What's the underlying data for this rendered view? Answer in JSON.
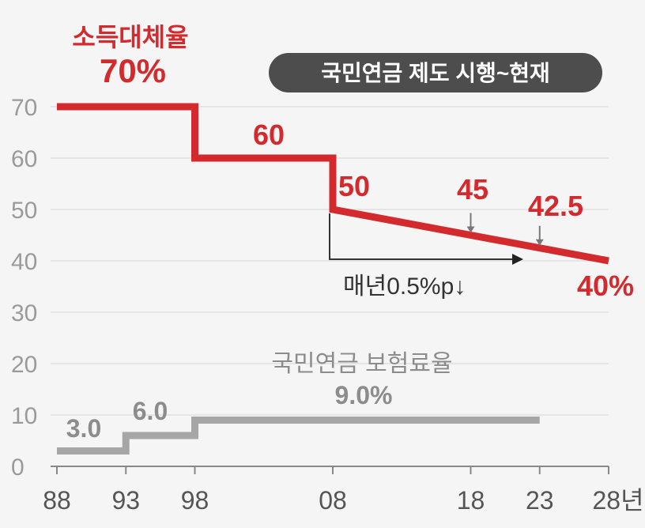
{
  "chart_data": {
    "type": "line",
    "x_ticks": [
      "88",
      "93",
      "98",
      "08",
      "18",
      "23",
      "28년"
    ],
    "y_ticks": [
      "0",
      "10",
      "20",
      "30",
      "40",
      "50",
      "60",
      "70"
    ],
    "ylim": [
      0,
      70
    ],
    "xlim": [
      1988,
      2028
    ],
    "grid": true,
    "series": [
      {
        "name": "소득대체율",
        "headline": "70%",
        "color": "#d32a2e",
        "points": [
          [
            1988,
            70
          ],
          [
            1998,
            70
          ],
          [
            1998,
            60
          ],
          [
            2008,
            60
          ],
          [
            2008,
            50
          ],
          [
            2028,
            40
          ]
        ],
        "labels": [
          {
            "text": "60"
          },
          {
            "text": "50"
          },
          {
            "text": "45"
          },
          {
            "text": "42.5"
          },
          {
            "text": "40%"
          }
        ]
      },
      {
        "name": "국민연금 보험료율",
        "color": "#a6a6a6",
        "points": [
          [
            1988,
            3
          ],
          [
            1993,
            3
          ],
          [
            1993,
            6
          ],
          [
            1998,
            6
          ],
          [
            1998,
            9
          ],
          [
            2023,
            9
          ]
        ],
        "labels": [
          {
            "text": "3.0"
          },
          {
            "text": "6.0"
          },
          {
            "text": "9.0%"
          }
        ]
      }
    ],
    "annotations": {
      "badge": "국민연금 제도 시행~현재",
      "decline_note": "매년0.5%p↓"
    }
  }
}
